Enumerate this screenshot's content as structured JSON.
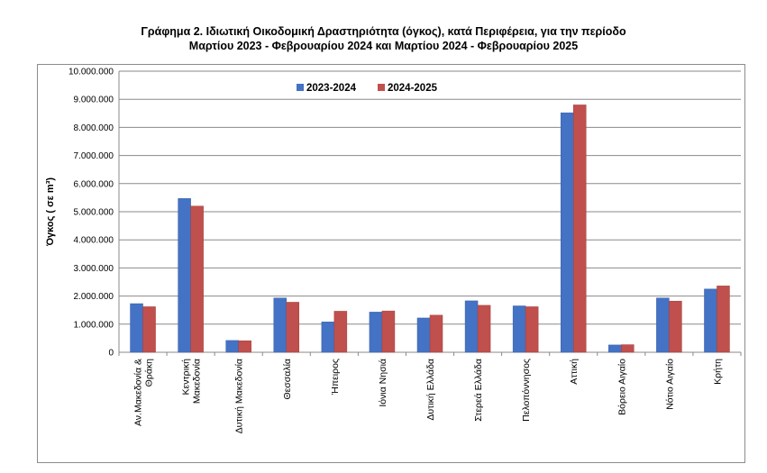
{
  "chart_data": {
    "type": "bar",
    "title_line1": "Γράφημα 2.  Ιδιωτική Οικοδομική Δραστηριότητα (όγκος), κατά Περιφέρεια, για την περίοδο",
    "title_line2": "Μαρτίου 2023 - Φεβρουαρίου 2024 και Μαρτίου 2024 - Φεβρουαρίου 2025",
    "ylabel": "Όγκος ( σε m³)",
    "xlabel": "",
    "ylim": [
      0,
      10000000
    ],
    "y_ticks": [
      {
        "value": 0,
        "label": "0"
      },
      {
        "value": 1000000,
        "label": "1.000.000"
      },
      {
        "value": 2000000,
        "label": "2.000.000"
      },
      {
        "value": 3000000,
        "label": "3.000.000"
      },
      {
        "value": 4000000,
        "label": "4.000.000"
      },
      {
        "value": 5000000,
        "label": "5.000.000"
      },
      {
        "value": 6000000,
        "label": "6.000.000"
      },
      {
        "value": 7000000,
        "label": "7.000.000"
      },
      {
        "value": 8000000,
        "label": "8.000.000"
      },
      {
        "value": 9000000,
        "label": "9.000.000"
      },
      {
        "value": 10000000,
        "label": "10.000.000"
      }
    ],
    "grid": true,
    "legend_position": "top-center",
    "categories": [
      [
        "Αν.Μακεδονία &",
        "Θράκη"
      ],
      [
        "Κεντρική",
        "Μακεδονία"
      ],
      [
        "Δυτική Μακεδονία"
      ],
      [
        "Θεσσαλία"
      ],
      [
        "Ήπειρος"
      ],
      [
        "Ιόνια Νησιά"
      ],
      [
        "Δυτική Ελλάδα"
      ],
      [
        "Στερεά Ελλάδα"
      ],
      [
        "Πελοπόννησος"
      ],
      [
        "Αττική"
      ],
      [
        "Βόρειο Αιγαίο"
      ],
      [
        "Νότιο Αιγαίο"
      ],
      [
        "Κρήτη"
      ]
    ],
    "series": [
      {
        "name": "2023-2024",
        "color": "#4472C4",
        "values": [
          1730000,
          5470000,
          420000,
          1930000,
          1080000,
          1430000,
          1220000,
          1830000,
          1650000,
          8520000,
          260000,
          1930000,
          2250000
        ]
      },
      {
        "name": "2024-2025",
        "color": "#C0504D",
        "values": [
          1620000,
          5200000,
          410000,
          1780000,
          1460000,
          1470000,
          1320000,
          1670000,
          1620000,
          8800000,
          270000,
          1820000,
          2360000
        ]
      }
    ]
  }
}
